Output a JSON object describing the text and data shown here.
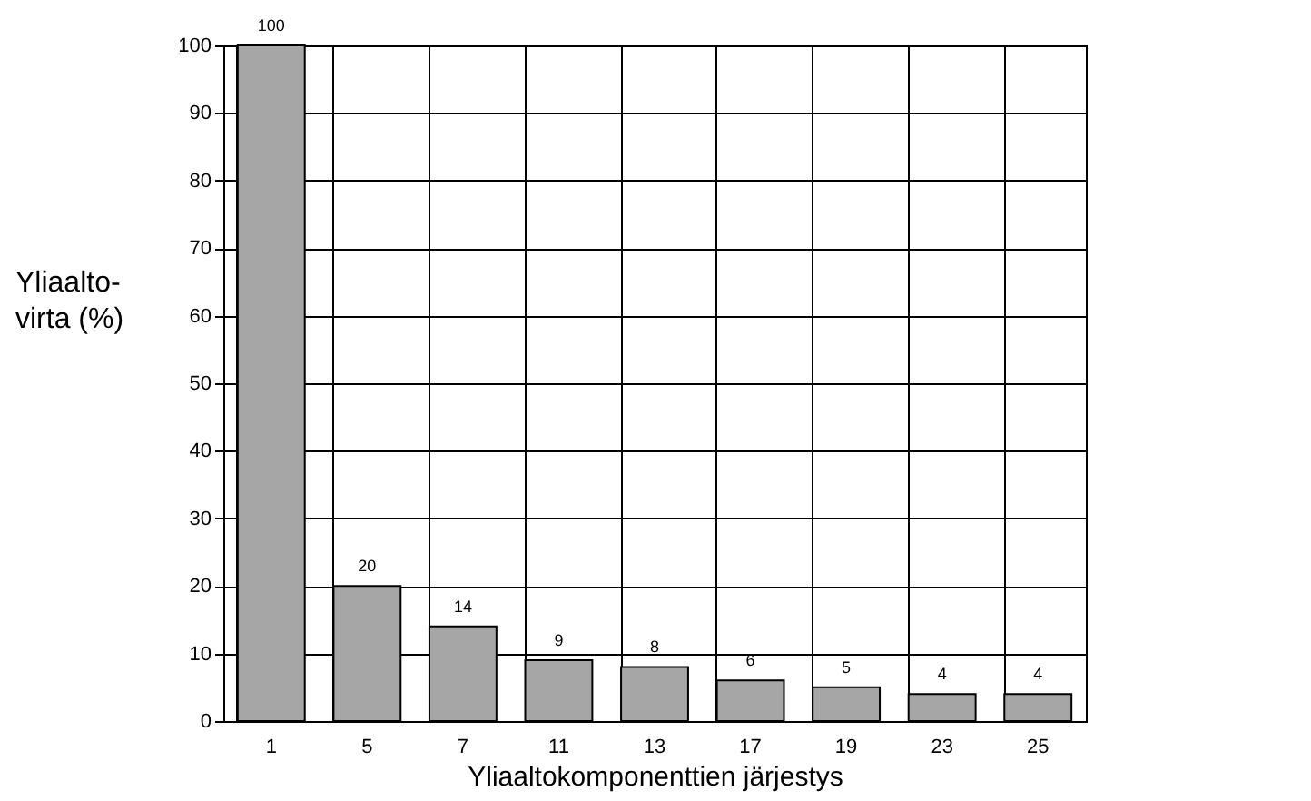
{
  "chart_data": {
    "type": "bar",
    "xlabel": "Yliaaltokomponenttien järjestys",
    "ylabel": "Yliaalto-\nvirta (%)",
    "categories": [
      "1",
      "5",
      "7",
      "11",
      "13",
      "17",
      "19",
      "23",
      "25"
    ],
    "values": [
      100,
      20,
      14,
      9,
      8,
      6,
      5,
      4,
      4
    ],
    "color": "#a6a6a6",
    "ylim": [
      0,
      100
    ],
    "yticks": [
      0,
      10,
      20,
      30,
      40,
      50,
      60,
      70,
      80,
      90,
      100
    ],
    "grid": true,
    "data_labels": true
  }
}
